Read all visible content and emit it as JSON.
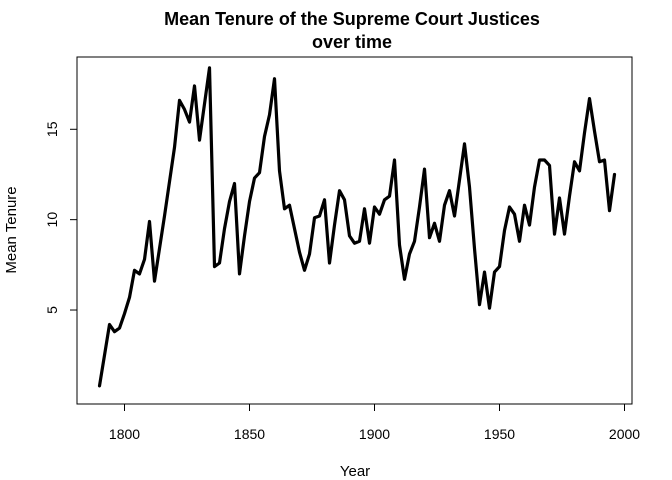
{
  "chart_data": {
    "type": "line",
    "title": "Mean Tenure of the Supreme Court Justices",
    "subtitle": "over time",
    "xlabel": "Year",
    "ylabel": "Mean Tenure",
    "xlim": [
      1781,
      2003
    ],
    "ylim": [
      -0.2,
      19.0
    ],
    "xticks": [
      1800,
      1850,
      1900,
      1950,
      2000
    ],
    "yticks": [
      5,
      10,
      15
    ],
    "grid": false,
    "legend": "none",
    "line_color": "#000000",
    "series": [
      {
        "x": [
          1790,
          1792,
          1794,
          1796,
          1798,
          1800,
          1802,
          1804,
          1806,
          1808,
          1810,
          1812,
          1816,
          1820,
          1822,
          1824,
          1826,
          1828,
          1830,
          1834,
          1836,
          1838,
          1840,
          1842,
          1844,
          1846,
          1848,
          1850,
          1852,
          1854,
          1856,
          1858,
          1860,
          1862,
          1864,
          1866,
          1868,
          1870,
          1872,
          1874,
          1876,
          1878,
          1880,
          1882,
          1884,
          1886,
          1888,
          1890,
          1892,
          1894,
          1896,
          1898,
          1900,
          1902,
          1904,
          1906,
          1908,
          1910,
          1912,
          1914,
          1916,
          1918,
          1920,
          1922,
          1924,
          1926,
          1928,
          1930,
          1932,
          1934,
          1936,
          1938,
          1940,
          1942,
          1944,
          1946,
          1948,
          1950,
          1952,
          1954,
          1956,
          1958,
          1960,
          1962,
          1964,
          1966,
          1968,
          1970,
          1972,
          1974,
          1976,
          1978,
          1980,
          1982,
          1984,
          1986,
          1988,
          1990,
          1992,
          1994,
          1996
        ],
        "y": [
          0.8,
          2.5,
          4.2,
          3.8,
          4.0,
          4.8,
          5.7,
          7.2,
          7.0,
          7.8,
          9.9,
          6.6,
          10.2,
          14.0,
          16.6,
          16.1,
          15.4,
          17.4,
          14.4,
          18.4,
          7.4,
          7.6,
          9.5,
          11.0,
          12.0,
          7.0,
          9.1,
          11.0,
          12.3,
          12.6,
          14.6,
          15.8,
          17.8,
          12.7,
          10.6,
          10.8,
          9.5,
          8.2,
          7.2,
          8.1,
          10.1,
          10.2,
          11.1,
          7.6,
          9.7,
          11.6,
          11.1,
          9.1,
          8.7,
          8.8,
          10.6,
          8.7,
          10.7,
          10.3,
          11.1,
          11.3,
          13.3,
          8.6,
          6.7,
          8.1,
          8.8,
          10.7,
          12.8,
          9.0,
          9.8,
          8.8,
          10.8,
          11.6,
          10.2,
          12.2,
          14.2,
          11.8,
          8.4,
          5.3,
          7.1,
          5.1,
          7.1,
          7.4,
          9.4,
          10.7,
          10.3,
          8.8,
          10.8,
          9.7,
          11.8,
          13.3,
          13.3,
          13.0,
          9.2,
          11.2,
          9.2,
          11.3,
          13.2,
          12.7,
          14.8,
          16.7,
          14.9,
          13.2,
          13.3,
          10.5,
          12.5
        ]
      }
    ]
  }
}
